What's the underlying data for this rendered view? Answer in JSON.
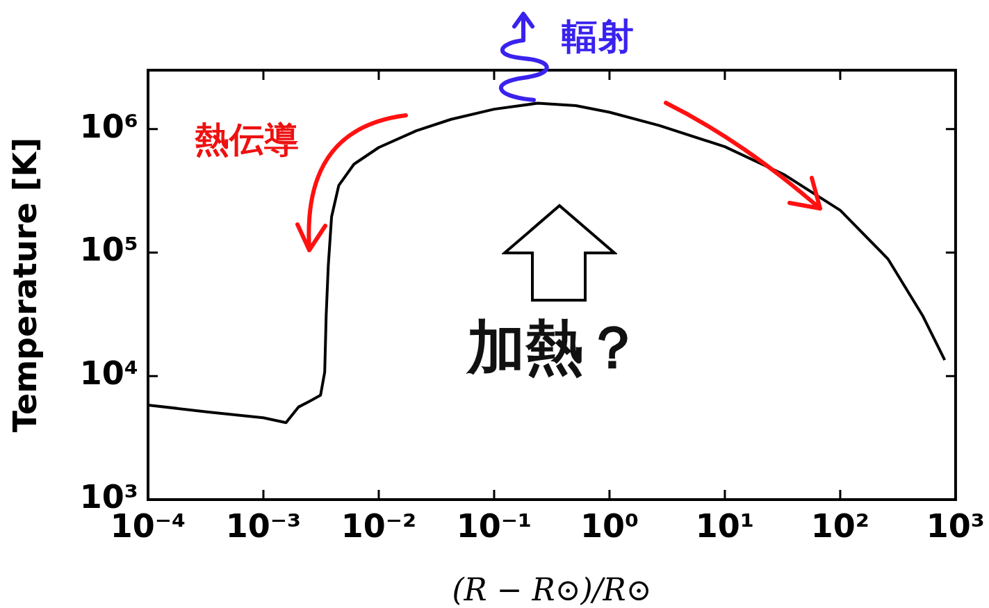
{
  "chart_data": {
    "type": "line",
    "xlabel": "(R − R⊙)/R⊙",
    "ylabel": "Temperature [K]",
    "log": "xy",
    "grid": false,
    "legend": false,
    "marker": "none",
    "line_style": "solid",
    "xlim": [
      0.0001,
      1000
    ],
    "xticks": [
      {
        "value": 0.0001,
        "label": "10⁻⁴"
      },
      {
        "value": 0.001,
        "label": "10⁻³"
      },
      {
        "value": 0.01,
        "label": "10⁻²"
      },
      {
        "value": 0.1,
        "label": "10⁻¹"
      },
      {
        "value": 1,
        "label": "10⁰"
      },
      {
        "value": 10,
        "label": "10¹"
      },
      {
        "value": 100,
        "label": "10²"
      },
      {
        "value": 1000,
        "label": "10³"
      }
    ],
    "ylim": [
      1000,
      3000000
    ],
    "yticks": [
      {
        "value": 1000,
        "label": "10³"
      },
      {
        "value": 10000,
        "label": "10⁴"
      },
      {
        "value": 100000,
        "label": "10⁵"
      },
      {
        "value": 1000000,
        "label": "10⁶"
      }
    ],
    "x": [
      0.0001,
      0.000333,
      0.001,
      0.00157,
      0.00201,
      0.00248,
      0.00313,
      0.0034,
      0.0035,
      0.00365,
      0.0039,
      0.0045,
      0.0061,
      0.01,
      0.0212,
      0.0423,
      0.1,
      0.238,
      0.51,
      1,
      2.7,
      10,
      32.4,
      100,
      259,
      517,
      805
    ],
    "series": [
      {
        "color": "#000000",
        "values": [
          5830,
          5120,
          4600,
          4200,
          5610,
          6220,
          7010,
          10800,
          30900,
          78000,
          195000,
          350000,
          520000,
          710000,
          970000,
          1200000,
          1450000,
          1620000,
          1550000,
          1370000,
          1070000,
          720000,
          430000,
          220000,
          89000,
          31000,
          13500
        ]
      }
    ],
    "annotations": [
      "輻射",
      "熱伝導",
      "加熱？"
    ]
  }
}
